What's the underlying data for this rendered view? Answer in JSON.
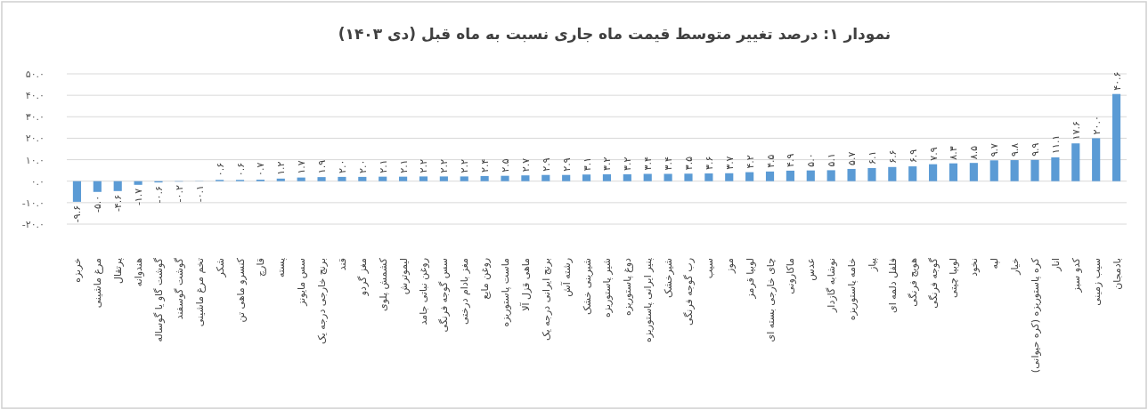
{
  "chart_data": {
    "type": "bar",
    "title": "نمودار ۱: درصد تغییر متوسط قیمت ماه جاری نسبت به ماه قبل (دی ۱۴۰۳)",
    "categories": [
      "خربزه",
      "مرغ ماشینی",
      "پرتقال",
      "هندوانه",
      "گوشت گاو یا گوساله",
      "گوشت گوسفند",
      "تخم مرغ ماشینی",
      "شکر",
      "کنسرو ماهی تن",
      "قارچ",
      "پسته",
      "سس مایونز",
      "برنج خارجی درجه یک",
      "قند",
      "مغز گردو",
      "کشمش پلوی",
      "لیموترش",
      "روغن نباتی جامد",
      "سس گوجه فرنگی",
      "مغز بادام درختی",
      "روغن مایع",
      "ماست پاستوریزه",
      "ماهی قزل آلا",
      "برنج ایرانی درجه یک",
      "رشته آش",
      "شیرینی خشک",
      "شیر پاستوریزه",
      "دوغ پاستوریزه",
      "پنیر ایرانی پاستوریزه",
      "شیرخشک",
      "رب گوجه فرنگی",
      "سیب",
      "موز",
      "لوبیا قرمز",
      "چای خارجی بسته ای",
      "ماکارونی",
      "عدس",
      "نوشابه گازدار",
      "خامه پاستوریزه",
      "پیاز",
      "فلفل دلمه ای",
      "هویج فرنگی",
      "گوجه فرنگی",
      "لوبیا چیتی",
      "نخود",
      "لپه",
      "خیار",
      "کره پاستوریزه (کره حیوانی)",
      "انار",
      "کدو سبز",
      "سیب زمینی",
      "بادمجان"
    ],
    "values": [
      -9.6,
      -5.0,
      -4.6,
      -1.7,
      -0.6,
      -0.2,
      -0.1,
      0.6,
      0.6,
      0.7,
      1.2,
      1.7,
      1.9,
      2.0,
      2.0,
      2.1,
      2.1,
      2.2,
      2.2,
      2.2,
      2.4,
      2.5,
      2.7,
      2.9,
      2.9,
      3.1,
      3.2,
      3.2,
      3.4,
      3.4,
      3.5,
      3.6,
      3.7,
      4.2,
      4.5,
      4.9,
      5.0,
      5.1,
      5.7,
      6.1,
      6.6,
      6.9,
      7.9,
      8.3,
      8.5,
      9.7,
      9.8,
      9.9,
      11.1,
      17.6,
      20.0,
      40.6
    ],
    "value_labels": [
      "-۹.۶",
      "-۵.۰",
      "-۴.۶",
      "-۱.۷",
      "-۰.۶",
      "-۰.۲",
      "-۰.۱",
      "۰.۶",
      "۰.۶",
      "۰.۷",
      "۱.۲",
      "۱.۷",
      "۱.۹",
      "۲.۰",
      "۲.۰",
      "۲.۱",
      "۲.۱",
      "۲.۲",
      "۲.۲",
      "۲.۲",
      "۲.۴",
      "۲.۵",
      "۲.۷",
      "۲.۹",
      "۲.۹",
      "۳.۱",
      "۳.۲",
      "۳.۲",
      "۳.۴",
      "۳.۴",
      "۳.۵",
      "۳.۶",
      "۳.۷",
      "۴.۲",
      "۴.۵",
      "۴.۹",
      "۵.۰",
      "۵.۱",
      "۵.۷",
      "۶.۱",
      "۶.۶",
      "۶.۹",
      "۷.۹",
      "۸.۳",
      "۸.۵",
      "۹.۷",
      "۹.۸",
      "۹.۹",
      "۱۱.۱",
      "۱۷.۶",
      "۲۰.۰",
      "۴۰.۶"
    ],
    "color": "#5b9bd5",
    "ylim": [
      -20,
      50
    ],
    "yticks": [
      {
        "value": -20,
        "label": "-۲۰.۰"
      },
      {
        "value": -10,
        "label": "-۱۰.۰"
      },
      {
        "value": 0,
        "label": "۰.۰"
      },
      {
        "value": 10,
        "label": "۱۰.۰"
      },
      {
        "value": 20,
        "label": "۲۰.۰"
      },
      {
        "value": 30,
        "label": "۳۰.۰"
      },
      {
        "value": 40,
        "label": "۴۰.۰"
      },
      {
        "value": 50,
        "label": "۵۰.۰"
      }
    ],
    "grid": "y"
  }
}
